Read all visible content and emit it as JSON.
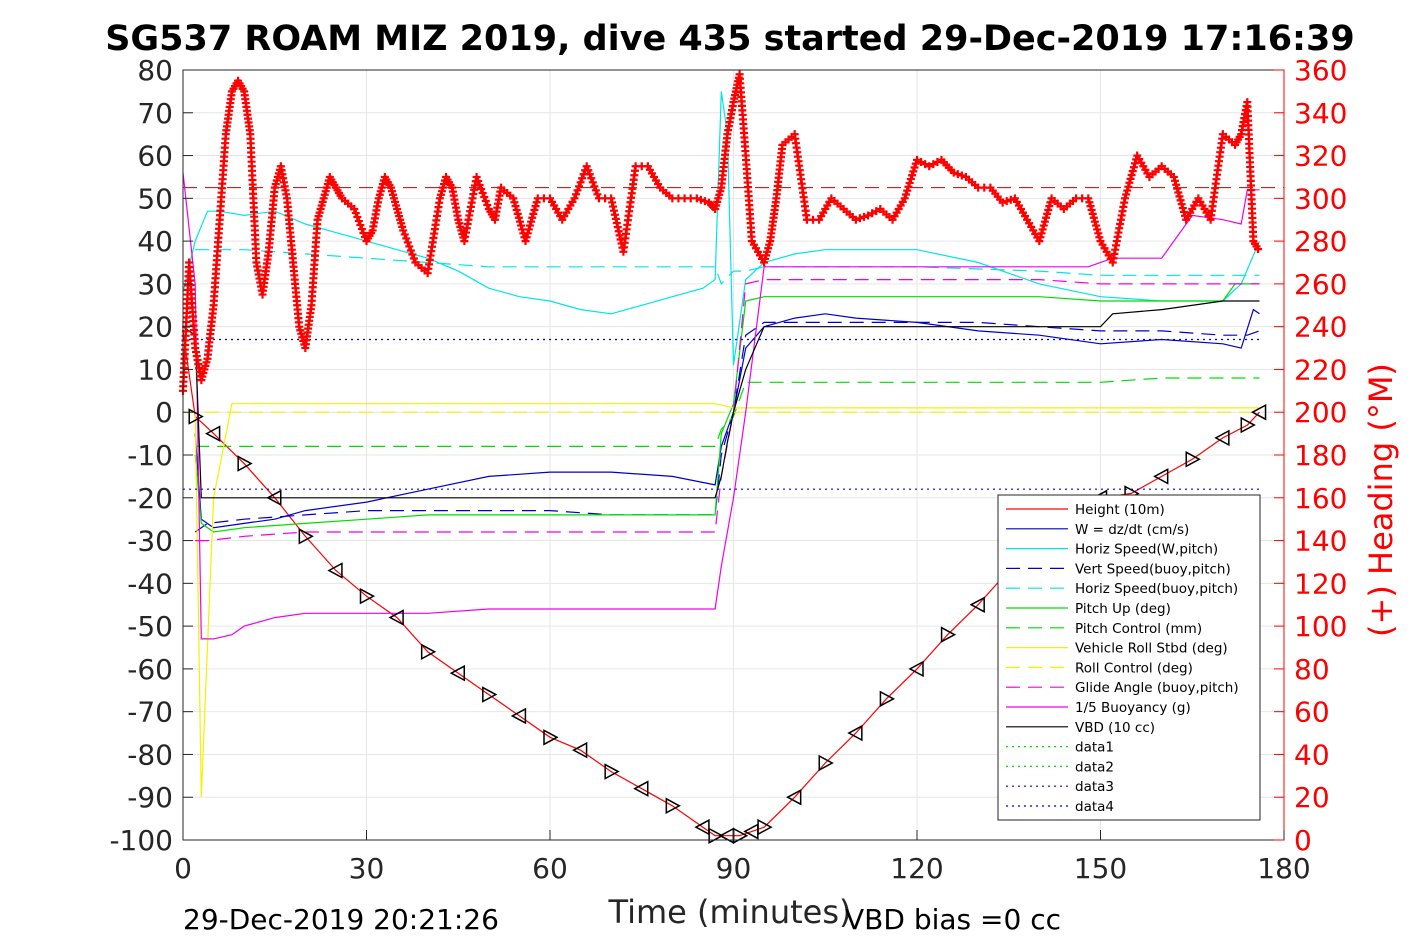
{
  "title": "SG537 ROAM MIZ 2019, dive 435 started 29-Dec-2019 17:16:39",
  "footer_left": "29-Dec-2019 20:21:26",
  "footer_right": "VBD bias =0 cc",
  "chart_data": {
    "type": "line",
    "title": "SG537 ROAM MIZ 2019, dive 435 started 29-Dec-2019 17:16:39",
    "xlabel": "Time (minutes)",
    "ylabel": "",
    "ylabel_right": "(+) Heading (°M)",
    "xlim": [
      0,
      180
    ],
    "ylim": [
      -100,
      80
    ],
    "ylim_right": [
      0,
      360
    ],
    "xticks": [
      "0",
      "30",
      "60",
      "90",
      "120",
      "150",
      "180"
    ],
    "yticks": [
      "80",
      "70",
      "60",
      "50",
      "40",
      "30",
      "20",
      "10",
      "0",
      "-10",
      "-20",
      "-30",
      "-40",
      "-50",
      "-60",
      "-70",
      "-80",
      "-90",
      "-100"
    ],
    "yticks_right": [
      "360",
      "340",
      "320",
      "300",
      "280",
      "260",
      "240",
      "220",
      "200",
      "180",
      "160",
      "140",
      "120",
      "100",
      "80",
      "60",
      "40",
      "20",
      "0"
    ],
    "grid": true,
    "legend_position": "lower-right",
    "colors": {
      "height": "#ff0000",
      "w": "#0000cc",
      "horiz_w": "#00e5e5",
      "vert_buoy": "#0000cc",
      "horiz_buoy": "#00e5e5",
      "pitch": "#00dd00",
      "pitch_ctrl": "#00dd00",
      "roll": "#f2f200",
      "roll_ctrl": "#f2f200",
      "glide": "#ee00ee",
      "buoyancy": "#ee00ee",
      "vbd": "#000000",
      "heading": "#ff0000",
      "axis_right": "#ff0000"
    },
    "series": [
      {
        "name": "Height (10m)",
        "style": "solid",
        "color": "#ff0000",
        "markers": "triangles",
        "x": [
          0,
          2,
          5,
          10,
          15,
          20,
          25,
          30,
          35,
          40,
          45,
          50,
          55,
          60,
          65,
          70,
          75,
          80,
          85,
          87,
          89,
          91,
          93,
          95,
          100,
          105,
          110,
          115,
          120,
          125,
          130,
          135,
          140,
          145,
          150,
          155,
          160,
          165,
          170,
          174,
          176
        ],
        "y": [
          19,
          -1,
          -5,
          -12,
          -20,
          -29,
          -37,
          -43,
          -48,
          -56,
          -61,
          -66,
          -71,
          -76,
          -79,
          -84,
          -88,
          -92,
          -97,
          -99,
          -99,
          -99,
          -98,
          -97,
          -90,
          -82,
          -75,
          -67,
          -60,
          -52,
          -45,
          -37,
          -30,
          -22,
          -20,
          -19,
          -15,
          -11,
          -6,
          -3,
          0
        ]
      },
      {
        "name": "W = dz/dt (cm/s)",
        "style": "solid",
        "color": "#0000cc",
        "x": [
          2,
          3,
          5,
          10,
          15,
          20,
          30,
          40,
          50,
          60,
          70,
          80,
          87,
          88,
          90,
          92,
          95,
          100,
          105,
          110,
          120,
          130,
          140,
          150,
          160,
          170,
          173,
          175,
          176
        ],
        "y": [
          -5,
          -25,
          -27,
          -26,
          -25,
          -23,
          -21,
          -18,
          -15,
          -14,
          -14,
          -15,
          -17,
          -8,
          0,
          15,
          20,
          22,
          23,
          22,
          21,
          19,
          18,
          16,
          17,
          16,
          15,
          24,
          23
        ]
      },
      {
        "name": "Horiz Speed(W,pitch)",
        "style": "solid",
        "color": "#00e5e5",
        "x": [
          0,
          2,
          4,
          6,
          10,
          15,
          20,
          25,
          30,
          35,
          40,
          45,
          50,
          55,
          60,
          65,
          70,
          75,
          80,
          85,
          87,
          88,
          89,
          90,
          92,
          95,
          100,
          105,
          110,
          115,
          120,
          130,
          140,
          150,
          160,
          170,
          173,
          176
        ],
        "y": [
          28,
          40,
          47,
          47,
          46,
          47,
          44,
          42,
          40,
          38,
          36,
          33,
          29,
          27,
          26,
          24,
          23,
          25,
          27,
          29,
          31,
          75,
          65,
          11,
          31,
          35,
          37,
          38,
          38,
          38,
          38,
          35,
          30,
          27,
          26,
          26,
          30,
          40
        ]
      },
      {
        "name": "Vert Speed(buoy,pitch)",
        "style": "dashed",
        "color": "#0000cc",
        "x": [
          2,
          4,
          10,
          20,
          30,
          40,
          50,
          60,
          70,
          80,
          87,
          88,
          90,
          92,
          95,
          100,
          110,
          120,
          130,
          140,
          150,
          160,
          170,
          174,
          176
        ],
        "y": [
          -28,
          -26,
          -25,
          -24,
          -23,
          -23,
          -23,
          -23,
          -24,
          -24,
          -24,
          -10,
          0,
          18,
          21,
          21,
          21,
          21,
          21,
          20,
          19,
          19,
          18,
          18,
          19
        ]
      },
      {
        "name": "Horiz Speed(buoy,pitch)",
        "style": "dashed",
        "color": "#00e5e5",
        "x": [
          2,
          5,
          10,
          20,
          30,
          40,
          50,
          60,
          70,
          80,
          87,
          88,
          90,
          92,
          95,
          100,
          120,
          140,
          150,
          160,
          170,
          176
        ],
        "y": [
          38,
          38,
          38,
          37,
          36,
          35,
          34,
          34,
          34,
          34,
          34,
          30,
          33,
          33,
          34,
          34,
          34,
          33,
          32,
          32,
          32,
          32
        ]
      },
      {
        "name": "Pitch Up (deg)",
        "style": "solid",
        "color": "#00dd00",
        "x": [
          2,
          3,
          5,
          10,
          20,
          30,
          40,
          50,
          60,
          70,
          80,
          87,
          88,
          90,
          92,
          95,
          100,
          110,
          120,
          130,
          140,
          150,
          160,
          170,
          172,
          174,
          176
        ],
        "y": [
          -10,
          -26,
          -28,
          -27,
          -26,
          -25,
          -24,
          -24,
          -24,
          -24,
          -24,
          -24,
          -5,
          2,
          26,
          27,
          27,
          27,
          27,
          27,
          27,
          26,
          26,
          26,
          30,
          30,
          30
        ]
      },
      {
        "name": "Pitch Control (mm)",
        "style": "dashed",
        "color": "#00dd00",
        "x": [
          2,
          5,
          10,
          20,
          30,
          40,
          50,
          60,
          70,
          80,
          87,
          88,
          90,
          92,
          95,
          100,
          120,
          140,
          150,
          160,
          170,
          176
        ],
        "y": [
          -8,
          -8,
          -8,
          -8,
          -8,
          -8,
          -8,
          -8,
          -8,
          -8,
          -8,
          -4,
          -1,
          7,
          7,
          7,
          7,
          7,
          7,
          8,
          8,
          8
        ]
      },
      {
        "name": "Vehicle Roll Stbd (deg)",
        "style": "solid",
        "color": "#f2f200",
        "x": [
          2,
          3,
          5,
          8,
          10,
          20,
          30,
          40,
          50,
          60,
          70,
          80,
          87,
          90,
          95,
          100,
          110,
          120,
          130,
          140,
          150,
          160,
          170,
          176
        ],
        "y": [
          0,
          -90,
          -20,
          2,
          2,
          2,
          2,
          2,
          2,
          2,
          2,
          2,
          2,
          1,
          1,
          1,
          1,
          1,
          1,
          1,
          1,
          1,
          1,
          1
        ]
      },
      {
        "name": "Roll Control (deg)",
        "style": "dashed",
        "color": "#f2f200",
        "x": [
          0,
          10,
          20,
          30,
          40,
          50,
          60,
          70,
          80,
          90,
          100,
          110,
          120,
          130,
          140,
          150,
          160,
          170,
          176
        ],
        "y": [
          0,
          0,
          0,
          0,
          0,
          0,
          0,
          0,
          0,
          0,
          0,
          0,
          0,
          0,
          0,
          0,
          0,
          0,
          0
        ]
      },
      {
        "name": "Glide Angle (buoy,pitch)",
        "style": "dashed",
        "color": "#ee00ee",
        "x": [
          2,
          4,
          10,
          20,
          30,
          40,
          50,
          60,
          70,
          80,
          87,
          88,
          90,
          92,
          95,
          100,
          120,
          140,
          150,
          160,
          170,
          176
        ],
        "y": [
          -30,
          -30,
          -29,
          -28,
          -28,
          -28,
          -28,
          -28,
          -28,
          -28,
          -28,
          -15,
          0,
          30,
          31,
          31,
          31,
          31,
          30,
          30,
          30,
          30
        ]
      },
      {
        "name": "1/5 Buoyancy (g)",
        "style": "solid",
        "color": "#ee00ee",
        "x": [
          0,
          2,
          3,
          5,
          8,
          10,
          15,
          20,
          30,
          40,
          50,
          60,
          70,
          80,
          87,
          88,
          90,
          92,
          95,
          100,
          110,
          120,
          130,
          140,
          148,
          152,
          160,
          165,
          170,
          173,
          174,
          176
        ],
        "y": [
          56,
          30,
          -53,
          -53,
          -52,
          -50,
          -48,
          -47,
          -47,
          -47,
          -46,
          -46,
          -46,
          -46,
          -46,
          -36,
          -20,
          0,
          34,
          34,
          34,
          34,
          34,
          34,
          34,
          36,
          36,
          46,
          45,
          44,
          52,
          52
        ]
      },
      {
        "name": "VBD (10 cc)",
        "style": "solid",
        "color": "#000000",
        "x": [
          0,
          2,
          3,
          10,
          20,
          30,
          40,
          50,
          60,
          70,
          80,
          87,
          88,
          89,
          90,
          92,
          95,
          100,
          110,
          120,
          130,
          140,
          150,
          152,
          160,
          170,
          174,
          176
        ],
        "y": [
          20,
          18,
          -20,
          -20,
          -20,
          -20,
          -20,
          -20,
          -20,
          -20,
          -20,
          -20,
          -15,
          -7,
          0,
          10,
          20,
          20,
          20,
          20,
          20,
          20,
          20,
          23,
          24,
          26,
          26,
          26
        ]
      },
      {
        "name": "data1",
        "style": "dotted",
        "color": "#00dd00",
        "x": [],
        "y": []
      },
      {
        "name": "data2",
        "style": "dotted",
        "color": "#00dd00",
        "x": [],
        "y": []
      },
      {
        "name": "data3",
        "style": "dotted",
        "color": "#0000cc",
        "x": [
          0,
          176
        ],
        "y": [
          17,
          17
        ]
      },
      {
        "name": "data4",
        "style": "dotted",
        "color": "#0000cc",
        "x": [
          0,
          176
        ],
        "y": [
          -18,
          -18
        ]
      }
    ],
    "reference_lines": [
      {
        "axis": "right",
        "value": 305,
        "style": "dashed",
        "color": "#cc0000"
      }
    ],
    "heading": {
      "axis": "right",
      "marker": "+",
      "color": "#ff0000",
      "x": [
        0,
        1,
        2,
        3,
        4,
        5,
        6,
        7,
        8,
        9,
        10,
        11,
        12,
        13,
        14,
        15,
        16,
        17,
        18,
        19,
        20,
        21,
        22,
        23,
        24,
        25,
        26,
        28,
        30,
        31,
        32,
        33,
        34,
        35,
        36,
        38,
        40,
        42,
        43,
        44,
        45,
        46,
        48,
        50,
        51,
        52,
        54,
        56,
        58,
        60,
        62,
        64,
        66,
        68,
        70,
        72,
        74,
        76,
        78,
        80,
        82,
        84,
        86,
        87,
        88,
        89,
        90,
        91,
        92,
        93,
        95,
        96,
        97,
        98,
        100,
        102,
        104,
        106,
        108,
        110,
        112,
        114,
        116,
        118,
        120,
        122,
        124,
        126,
        128,
        130,
        132,
        134,
        136,
        138,
        140,
        142,
        144,
        146,
        148,
        150,
        152,
        154,
        156,
        158,
        160,
        162,
        164,
        166,
        168,
        170,
        172,
        173,
        174,
        175,
        176
      ],
      "y": [
        210,
        270,
        230,
        215,
        225,
        250,
        290,
        330,
        350,
        355,
        350,
        330,
        270,
        255,
        275,
        305,
        315,
        300,
        270,
        240,
        230,
        250,
        290,
        300,
        310,
        305,
        300,
        295,
        280,
        285,
        300,
        310,
        305,
        295,
        285,
        270,
        265,
        300,
        310,
        305,
        290,
        280,
        310,
        295,
        290,
        305,
        300,
        280,
        300,
        300,
        290,
        300,
        315,
        300,
        300,
        275,
        315,
        315,
        305,
        300,
        300,
        300,
        298,
        295,
        305,
        330,
        345,
        358,
        320,
        280,
        270,
        280,
        300,
        325,
        330,
        290,
        290,
        300,
        295,
        290,
        292,
        295,
        290,
        300,
        318,
        315,
        318,
        312,
        310,
        305,
        305,
        298,
        300,
        290,
        280,
        300,
        295,
        300,
        300,
        280,
        270,
        300,
        320,
        310,
        315,
        310,
        290,
        300,
        290,
        330,
        325,
        330,
        345,
        280,
        275
      ]
    }
  }
}
